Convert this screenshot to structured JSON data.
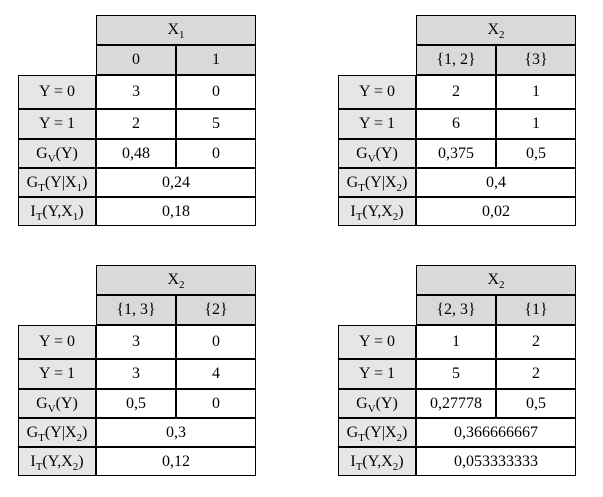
{
  "tables": [
    {
      "header": [
        "X",
        "1"
      ],
      "columns": [
        "0",
        "1"
      ],
      "rows": [
        {
          "label": [
            "Y = 0"
          ],
          "values": [
            "3",
            "0"
          ]
        },
        {
          "label": [
            "Y = 1"
          ],
          "values": [
            "2",
            "5"
          ]
        },
        {
          "label": [
            "G",
            "V",
            "(Y)"
          ],
          "values": [
            "0,48",
            "0"
          ]
        }
      ],
      "summary": [
        {
          "label": [
            "G",
            "T",
            "(Y|X",
            "1",
            ")"
          ],
          "value": "0,24"
        },
        {
          "label": [
            "I",
            "T",
            "(Y,X",
            "1",
            ")"
          ],
          "value": "0,18"
        }
      ]
    },
    {
      "header": [
        "X",
        "2"
      ],
      "columns": [
        "{1, 2}",
        "{3}"
      ],
      "rows": [
        {
          "label": [
            "Y = 0"
          ],
          "values": [
            "2",
            "1"
          ]
        },
        {
          "label": [
            "Y = 1"
          ],
          "values": [
            "6",
            "1"
          ]
        },
        {
          "label": [
            "G",
            "V",
            "(Y)"
          ],
          "values": [
            "0,375",
            "0,5"
          ]
        }
      ],
      "summary": [
        {
          "label": [
            "G",
            "T",
            "(Y|X",
            "2",
            ")"
          ],
          "value": "0,4"
        },
        {
          "label": [
            "I",
            "T",
            "(Y,X",
            "2",
            ")"
          ],
          "value": "0,02"
        }
      ]
    },
    {
      "header": [
        "X",
        "2"
      ],
      "columns": [
        "{1, 3}",
        "{2}"
      ],
      "rows": [
        {
          "label": [
            "Y = 0"
          ],
          "values": [
            "3",
            "0"
          ]
        },
        {
          "label": [
            "Y = 1"
          ],
          "values": [
            "3",
            "4"
          ]
        },
        {
          "label": [
            "G",
            "V",
            "(Y)"
          ],
          "values": [
            "0,5",
            "0"
          ]
        }
      ],
      "summary": [
        {
          "label": [
            "G",
            "T",
            "(Y|X",
            "2",
            ")"
          ],
          "value": "0,3"
        },
        {
          "label": [
            "I",
            "T",
            "(Y,X",
            "2",
            ")"
          ],
          "value": "0,12"
        }
      ]
    },
    {
      "header": [
        "X",
        "2"
      ],
      "columns": [
        "{2, 3}",
        "{1}"
      ],
      "rows": [
        {
          "label": [
            "Y = 0"
          ],
          "values": [
            "1",
            "2"
          ]
        },
        {
          "label": [
            "Y = 1"
          ],
          "values": [
            "5",
            "2"
          ]
        },
        {
          "label": [
            "G",
            "V",
            "(Y)"
          ],
          "values": [
            "0,27778",
            "0,5"
          ]
        }
      ],
      "summary": [
        {
          "label": [
            "G",
            "T",
            "(Y|X",
            "2",
            ")"
          ],
          "value": "0,366666667"
        },
        {
          "label": [
            "I",
            "T",
            "(Y,X",
            "2",
            ")"
          ],
          "value": "0,053333333"
        }
      ]
    }
  ]
}
